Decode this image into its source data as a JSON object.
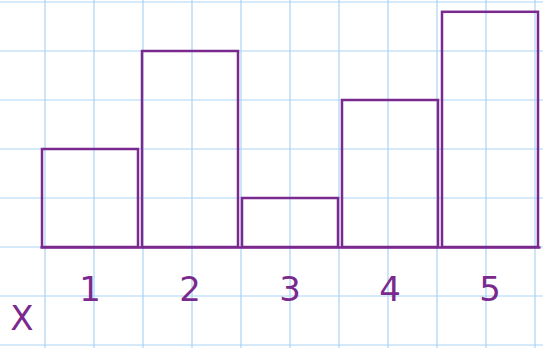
{
  "chart_data": {
    "type": "bar",
    "x_label": "X",
    "categories": [
      "1",
      "2",
      "3",
      "4",
      "5"
    ],
    "values": [
      2,
      4,
      1,
      3,
      4.8
    ],
    "color": "#7a2a8e",
    "ylim": [
      0,
      5
    ],
    "yticks": [
      0,
      1,
      2,
      3,
      4,
      5
    ],
    "grid": true,
    "tick_labels": "x"
  }
}
